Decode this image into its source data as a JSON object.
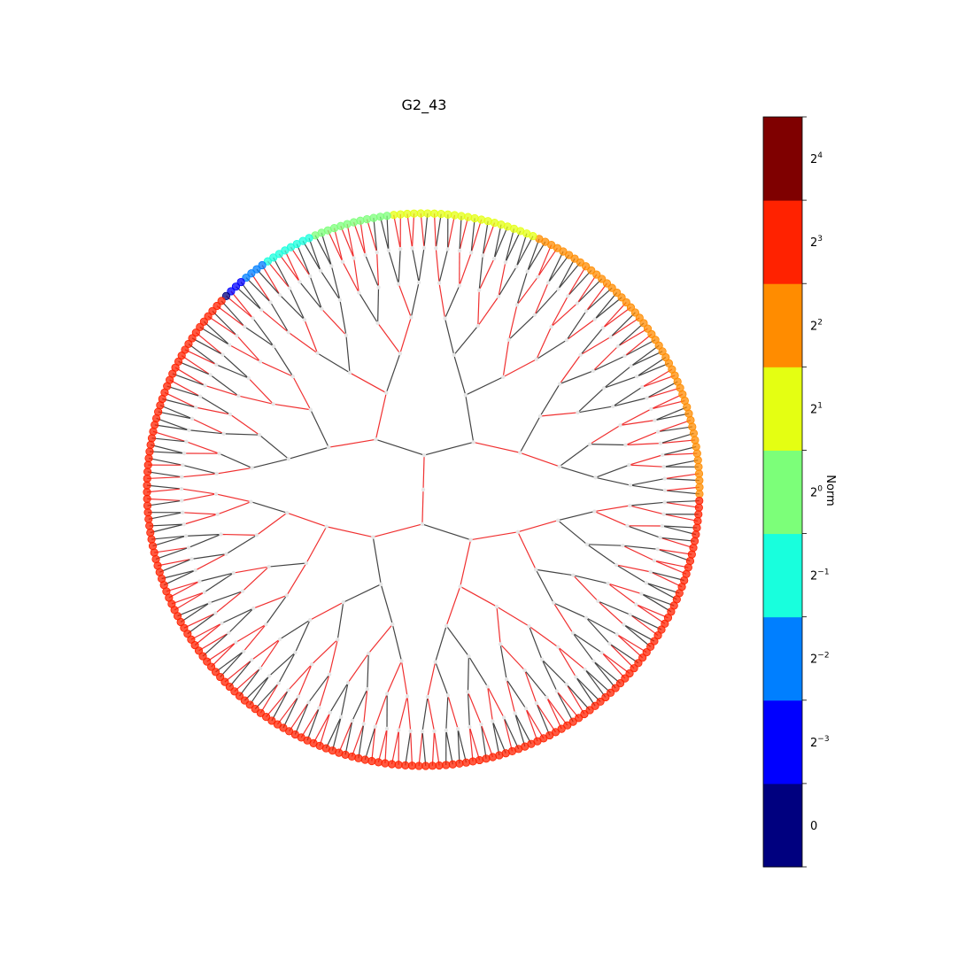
{
  "title": "G2_43",
  "tree": {
    "depth": 8,
    "leaf_count": 256,
    "edge_colors": {
      "red": "#f03030",
      "dark": "#444444"
    },
    "internal_node_color": "#e6e6e6",
    "leaf_color_bands": [
      {
        "count": 48,
        "level_index": 6
      },
      {
        "count": 22,
        "level_index": 5
      },
      {
        "count": 12,
        "level_index": 4
      },
      {
        "count": 8,
        "level_index": 3
      },
      {
        "count": 4,
        "level_index": 2
      },
      {
        "count": 3,
        "level_index": 1
      },
      {
        "count": 1,
        "level_index": 0
      },
      {
        "count": 158,
        "level_index": 7
      }
    ]
  },
  "colorbar": {
    "label": "Norm",
    "levels": [
      {
        "base": "0",
        "exp": "",
        "color": "#00007f"
      },
      {
        "base": "2",
        "exp": "−3",
        "color": "#0000ff"
      },
      {
        "base": "2",
        "exp": "−2",
        "color": "#007fff"
      },
      {
        "base": "2",
        "exp": "−1",
        "color": "#18ffdd"
      },
      {
        "base": "2",
        "exp": "0",
        "color": "#7cff79"
      },
      {
        "base": "2",
        "exp": "1",
        "color": "#e4ff12"
      },
      {
        "base": "2",
        "exp": "2",
        "color": "#ff8c00"
      },
      {
        "base": "2",
        "exp": "3",
        "color": "#ff2200"
      },
      {
        "base": "2",
        "exp": "4",
        "color": "#7f0000"
      }
    ]
  }
}
